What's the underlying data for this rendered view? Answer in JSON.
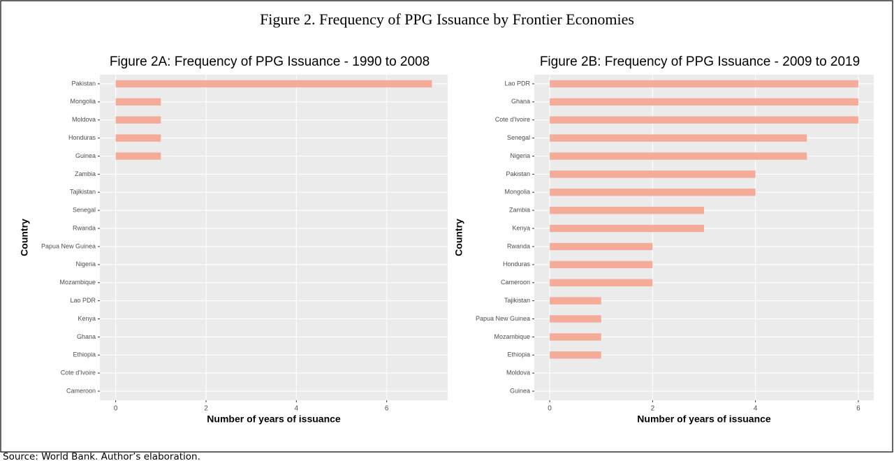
{
  "title": "Figure 2. Frequency of PPG Issuance by Frontier Economies",
  "source": "Source: World Bank. Author’s elaboration.",
  "chart_data": [
    {
      "type": "barh",
      "title": "Figure 2A: Frequency of PPG Issuance - 1990 to 2008",
      "x_label": "Number of years of issuance",
      "y_label": "Country",
      "categories": [
        "Pakistan",
        "Mongolia",
        "Moldova",
        "Honduras",
        "Guinea",
        "Zambia",
        "Tajikistan",
        "Senegal",
        "Rwanda",
        "Papua New Guinea",
        "Nigeria",
        "Mozambique",
        "Lao PDR",
        "Kenya",
        "Ghana",
        "Ethiopia",
        "Cote d'Ivoire",
        "Cameroon"
      ],
      "values": [
        7,
        1,
        1,
        1,
        1,
        0,
        0,
        0,
        0,
        0,
        0,
        0,
        0,
        0,
        0,
        0,
        0,
        0
      ],
      "color": "#f4ab98",
      "xlim": [
        -0.35,
        7.35
      ],
      "xticks": [
        0,
        2,
        4,
        6
      ],
      "grid": true
    },
    {
      "type": "barh",
      "title": "Figure 2B: Frequency of PPG Issuance - 2009 to 2019",
      "x_label": "Number of years of issuance",
      "y_label": "Country",
      "categories": [
        "Lao PDR",
        "Ghana",
        "Cote d'Ivoire",
        "Senegal",
        "Nigeria",
        "Pakistan",
        "Mongolia",
        "Zambia",
        "Kenya",
        "Rwanda",
        "Honduras",
        "Cameroon",
        "Tajikistan",
        "Papua New Guinea",
        "Mozambique",
        "Ethiopia",
        "Moldova",
        "Guinea"
      ],
      "values": [
        6,
        6,
        6,
        5,
        5,
        4,
        4,
        3,
        3,
        2,
        2,
        2,
        1,
        1,
        1,
        1,
        0,
        0
      ],
      "color": "#f4ab98",
      "xlim": [
        -0.3,
        6.3
      ],
      "xticks": [
        0,
        2,
        4,
        6
      ],
      "grid": true
    }
  ]
}
